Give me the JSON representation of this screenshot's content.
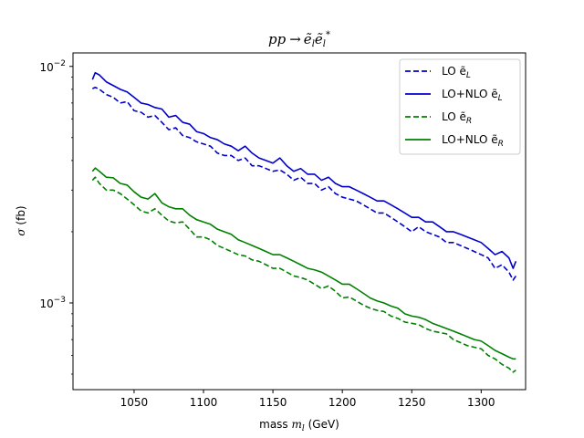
{
  "chart_data": {
    "type": "line",
    "title": "pp → ẽᵢẽᵢ*",
    "xlabel": "mass mₗ (GeV)",
    "ylabel": "σ (fb)",
    "xlim": [
      1006,
      1332
    ],
    "ylim": [
      0.00043,
      0.0114
    ],
    "yscale": "log",
    "grid": false,
    "legend_position": "top-right",
    "x_ticks": [
      {
        "value": 1050,
        "label": "1050"
      },
      {
        "value": 1100,
        "label": "1100"
      },
      {
        "value": 1150,
        "label": "1150"
      },
      {
        "value": 1200,
        "label": "1200"
      },
      {
        "value": 1250,
        "label": "1250"
      },
      {
        "value": 1300,
        "label": "1300"
      }
    ],
    "y_ticks": [
      {
        "value": 0.01,
        "base": "10",
        "exp": "−2"
      },
      {
        "value": 0.001,
        "base": "10",
        "exp": "−3"
      }
    ],
    "series": [
      {
        "name": "LO ẽL",
        "label_main": "LO ẽ",
        "label_sub": "L",
        "color": "#0000cc",
        "dash": true,
        "x": [
          1020,
          1022,
          1025,
          1030,
          1035,
          1040,
          1045,
          1050,
          1055,
          1060,
          1065,
          1070,
          1075,
          1080,
          1085,
          1090,
          1095,
          1100,
          1105,
          1110,
          1115,
          1120,
          1125,
          1130,
          1135,
          1140,
          1145,
          1150,
          1155,
          1160,
          1165,
          1170,
          1175,
          1180,
          1185,
          1190,
          1195,
          1200,
          1205,
          1210,
          1215,
          1220,
          1225,
          1230,
          1235,
          1240,
          1245,
          1250,
          1255,
          1260,
          1265,
          1270,
          1275,
          1280,
          1285,
          1290,
          1295,
          1300,
          1305,
          1310,
          1315,
          1320,
          1323,
          1325
        ],
        "y": [
          0.00805,
          0.00815,
          0.008,
          0.0076,
          0.0074,
          0.007,
          0.0071,
          0.0065,
          0.0064,
          0.0061,
          0.0062,
          0.0058,
          0.0054,
          0.0055,
          0.0051,
          0.005,
          0.0048,
          0.0047,
          0.0046,
          0.0043,
          0.0042,
          0.0042,
          0.004,
          0.0041,
          0.0038,
          0.0038,
          0.0037,
          0.0036,
          0.00365,
          0.0035,
          0.0033,
          0.0034,
          0.0032,
          0.0032,
          0.003,
          0.0031,
          0.0029,
          0.0028,
          0.00275,
          0.0027,
          0.0026,
          0.0025,
          0.0024,
          0.0024,
          0.0023,
          0.0022,
          0.0021,
          0.002,
          0.0021,
          0.002,
          0.00195,
          0.0019,
          0.0018,
          0.0018,
          0.00175,
          0.0017,
          0.00165,
          0.0016,
          0.00155,
          0.0014,
          0.00145,
          0.00135,
          0.00125,
          0.0013
        ]
      },
      {
        "name": "LO+NLO ẽL",
        "label_main": "LO+NLO ẽ",
        "label_sub": "L",
        "color": "#0000cc",
        "dash": false,
        "x": [
          1020,
          1022,
          1025,
          1030,
          1035,
          1040,
          1045,
          1050,
          1055,
          1060,
          1065,
          1070,
          1075,
          1080,
          1085,
          1090,
          1095,
          1100,
          1105,
          1110,
          1115,
          1120,
          1125,
          1130,
          1135,
          1140,
          1145,
          1150,
          1155,
          1160,
          1165,
          1170,
          1175,
          1180,
          1185,
          1190,
          1195,
          1200,
          1205,
          1210,
          1215,
          1220,
          1225,
          1230,
          1235,
          1240,
          1245,
          1250,
          1255,
          1260,
          1265,
          1270,
          1275,
          1280,
          1285,
          1290,
          1295,
          1300,
          1305,
          1310,
          1315,
          1320,
          1323,
          1325
        ],
        "y": [
          0.0088,
          0.0094,
          0.0092,
          0.0086,
          0.0083,
          0.008,
          0.0078,
          0.0074,
          0.007,
          0.0069,
          0.0067,
          0.0066,
          0.0061,
          0.0062,
          0.0058,
          0.0057,
          0.0053,
          0.0052,
          0.005,
          0.0049,
          0.0047,
          0.0046,
          0.0044,
          0.0046,
          0.0043,
          0.0041,
          0.004,
          0.0039,
          0.0041,
          0.0038,
          0.0036,
          0.0037,
          0.0035,
          0.0035,
          0.0033,
          0.0034,
          0.0032,
          0.0031,
          0.0031,
          0.003,
          0.0029,
          0.0028,
          0.0027,
          0.0027,
          0.0026,
          0.0025,
          0.0024,
          0.0023,
          0.0023,
          0.0022,
          0.0022,
          0.0021,
          0.002,
          0.002,
          0.00195,
          0.0019,
          0.00185,
          0.0018,
          0.0017,
          0.0016,
          0.00165,
          0.00155,
          0.0014,
          0.0015
        ]
      },
      {
        "name": "LO ẽR",
        "label_main": "LO ẽ",
        "label_sub": "R",
        "color": "#008000",
        "dash": true,
        "x": [
          1020,
          1022,
          1025,
          1030,
          1035,
          1040,
          1045,
          1050,
          1055,
          1060,
          1065,
          1070,
          1075,
          1080,
          1085,
          1090,
          1095,
          1100,
          1105,
          1110,
          1115,
          1120,
          1125,
          1130,
          1135,
          1140,
          1145,
          1150,
          1155,
          1160,
          1165,
          1170,
          1175,
          1180,
          1185,
          1190,
          1195,
          1200,
          1205,
          1210,
          1215,
          1220,
          1225,
          1230,
          1235,
          1240,
          1245,
          1250,
          1255,
          1260,
          1265,
          1270,
          1275,
          1280,
          1285,
          1290,
          1295,
          1300,
          1305,
          1310,
          1315,
          1320,
          1323,
          1325
        ],
        "y": [
          0.0033,
          0.0034,
          0.0032,
          0.003,
          0.003,
          0.0029,
          0.00275,
          0.0026,
          0.00245,
          0.0024,
          0.0025,
          0.00235,
          0.00222,
          0.00218,
          0.0022,
          0.00205,
          0.0019,
          0.0019,
          0.00185,
          0.00175,
          0.0017,
          0.00165,
          0.0016,
          0.00158,
          0.00152,
          0.0015,
          0.00145,
          0.0014,
          0.0014,
          0.00135,
          0.0013,
          0.00128,
          0.00125,
          0.0012,
          0.00115,
          0.00118,
          0.00112,
          0.00105,
          0.00106,
          0.00102,
          0.00098,
          0.00095,
          0.00093,
          0.00092,
          0.00088,
          0.00086,
          0.00083,
          0.00082,
          0.00081,
          0.00078,
          0.00076,
          0.00075,
          0.00074,
          0.0007,
          0.00068,
          0.00066,
          0.00065,
          0.00064,
          0.0006,
          0.00058,
          0.00055,
          0.00053,
          0.00051,
          0.00052
        ]
      },
      {
        "name": "LO+NLO ẽR",
        "label_main": "LO+NLO ẽ",
        "label_sub": "R",
        "color": "#008000",
        "dash": false,
        "x": [
          1020,
          1022,
          1025,
          1030,
          1035,
          1040,
          1045,
          1050,
          1055,
          1060,
          1065,
          1070,
          1075,
          1080,
          1085,
          1090,
          1095,
          1100,
          1105,
          1110,
          1115,
          1120,
          1125,
          1130,
          1135,
          1140,
          1145,
          1150,
          1155,
          1160,
          1165,
          1170,
          1175,
          1180,
          1185,
          1190,
          1195,
          1200,
          1205,
          1210,
          1215,
          1220,
          1225,
          1230,
          1235,
          1240,
          1245,
          1250,
          1255,
          1260,
          1265,
          1270,
          1275,
          1280,
          1285,
          1290,
          1295,
          1300,
          1305,
          1310,
          1315,
          1320,
          1323,
          1325
        ],
        "y": [
          0.0036,
          0.00372,
          0.0036,
          0.0034,
          0.00338,
          0.0032,
          0.00315,
          0.00295,
          0.0028,
          0.00275,
          0.0029,
          0.00265,
          0.00255,
          0.0025,
          0.0025,
          0.00235,
          0.00225,
          0.0022,
          0.00215,
          0.00205,
          0.002,
          0.00195,
          0.00185,
          0.0018,
          0.00175,
          0.0017,
          0.00165,
          0.0016,
          0.0016,
          0.00155,
          0.0015,
          0.00145,
          0.0014,
          0.00138,
          0.00135,
          0.0013,
          0.00125,
          0.0012,
          0.0012,
          0.00115,
          0.0011,
          0.00105,
          0.00102,
          0.001,
          0.00097,
          0.00095,
          0.0009,
          0.00088,
          0.00087,
          0.00085,
          0.00082,
          0.0008,
          0.00078,
          0.00076,
          0.00074,
          0.00072,
          0.0007,
          0.00069,
          0.00066,
          0.00063,
          0.00061,
          0.00059,
          0.00058,
          0.00058
        ]
      }
    ]
  }
}
